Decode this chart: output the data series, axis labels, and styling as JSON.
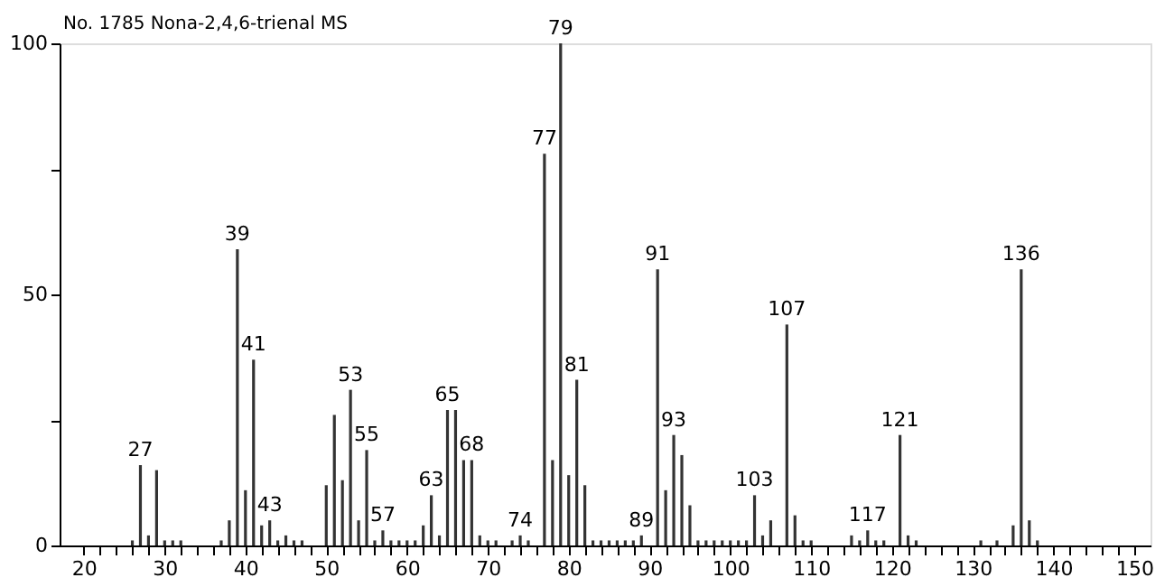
{
  "chart_data": {
    "type": "bar",
    "title": "No. 1785 Nona-2,4,6-trienal MS",
    "x": [
      26,
      27,
      28,
      29,
      30,
      31,
      32,
      37,
      38,
      39,
      40,
      41,
      42,
      43,
      44,
      45,
      46,
      47,
      50,
      51,
      52,
      53,
      54,
      55,
      56,
      57,
      58,
      59,
      60,
      61,
      62,
      63,
      64,
      65,
      66,
      67,
      68,
      69,
      70,
      71,
      73,
      74,
      75,
      77,
      78,
      79,
      80,
      81,
      82,
      83,
      84,
      85,
      86,
      87,
      88,
      89,
      91,
      92,
      93,
      94,
      95,
      96,
      97,
      98,
      99,
      100,
      101,
      102,
      103,
      104,
      105,
      107,
      108,
      109,
      110,
      115,
      116,
      117,
      118,
      119,
      121,
      122,
      123,
      131,
      133,
      135,
      136,
      137,
      138
    ],
    "values": [
      1,
      16,
      2,
      15,
      1,
      1,
      1,
      1,
      5,
      59,
      11,
      37,
      4,
      5,
      1,
      2,
      1,
      1,
      12,
      26,
      13,
      31,
      5,
      19,
      1,
      3,
      1,
      1,
      1,
      1,
      4,
      10,
      2,
      27,
      27,
      17,
      17,
      2,
      1,
      1,
      1,
      2,
      1,
      78,
      17,
      100,
      14,
      33,
      12,
      1,
      1,
      1,
      1,
      1,
      1,
      2,
      55,
      11,
      22,
      18,
      8,
      1,
      1,
      1,
      1,
      1,
      1,
      1,
      10,
      2,
      5,
      44,
      6,
      1,
      1,
      2,
      1,
      3,
      1,
      1,
      22,
      2,
      1,
      1,
      1,
      4,
      55,
      5,
      1
    ],
    "annotations": [
      {
        "text": "27",
        "x": 27,
        "y": 16
      },
      {
        "text": "39",
        "x": 39,
        "y": 59
      },
      {
        "text": "41",
        "x": 41,
        "y": 37
      },
      {
        "text": "43",
        "x": 43,
        "y": 5
      },
      {
        "text": "53",
        "x": 53,
        "y": 31
      },
      {
        "text": "55",
        "x": 55,
        "y": 19
      },
      {
        "text": "57",
        "x": 57,
        "y": 3
      },
      {
        "text": "63",
        "x": 63,
        "y": 10
      },
      {
        "text": "65",
        "x": 65,
        "y": 27
      },
      {
        "text": "68",
        "x": 68,
        "y": 17
      },
      {
        "text": "74",
        "x": 74,
        "y": 2
      },
      {
        "text": "77",
        "x": 77,
        "y": 78
      },
      {
        "text": "79",
        "x": 79,
        "y": 100
      },
      {
        "text": "81",
        "x": 81,
        "y": 33
      },
      {
        "text": "89",
        "x": 89,
        "y": 2
      },
      {
        "text": "91",
        "x": 91,
        "y": 55
      },
      {
        "text": "93",
        "x": 93,
        "y": 22
      },
      {
        "text": "103",
        "x": 103,
        "y": 10
      },
      {
        "text": "107",
        "x": 107,
        "y": 44
      },
      {
        "text": "117",
        "x": 117,
        "y": 3
      },
      {
        "text": "121",
        "x": 121,
        "y": 22
      },
      {
        "text": "136",
        "x": 136,
        "y": 55
      }
    ],
    "color": "#333333",
    "xlim": [
      17,
      152
    ],
    "xticks": [
      20,
      {
        "value": 22,
        "label": null
      },
      {
        "value": 24,
        "label": null
      },
      {
        "value": 26,
        "label": null
      },
      {
        "value": 28,
        "label": null
      },
      30,
      {
        "value": 32,
        "label": null
      },
      {
        "value": 34,
        "label": null
      },
      {
        "value": 36,
        "label": null
      },
      {
        "value": 38,
        "label": null
      },
      40,
      {
        "value": 42,
        "label": null
      },
      {
        "value": 44,
        "label": null
      },
      {
        "value": 46,
        "label": null
      },
      {
        "value": 48,
        "label": null
      },
      50,
      {
        "value": 52,
        "label": null
      },
      {
        "value": 54,
        "label": null
      },
      {
        "value": 56,
        "label": null
      },
      {
        "value": 58,
        "label": null
      },
      60,
      {
        "value": 62,
        "label": null
      },
      {
        "value": 64,
        "label": null
      },
      {
        "value": 66,
        "label": null
      },
      {
        "value": 68,
        "label": null
      },
      70,
      {
        "value": 72,
        "label": null
      },
      {
        "value": 74,
        "label": null
      },
      {
        "value": 76,
        "label": null
      },
      {
        "value": 78,
        "label": null
      },
      80,
      {
        "value": 82,
        "label": null
      },
      {
        "value": 84,
        "label": null
      },
      {
        "value": 86,
        "label": null
      },
      {
        "value": 88,
        "label": null
      },
      90,
      {
        "value": 92,
        "label": null
      },
      {
        "value": 94,
        "label": null
      },
      {
        "value": 96,
        "label": null
      },
      {
        "value": 98,
        "label": null
      },
      100,
      {
        "value": 102,
        "label": null
      },
      {
        "value": 104,
        "label": null
      },
      {
        "value": 106,
        "label": null
      },
      {
        "value": 108,
        "label": null
      },
      110,
      {
        "value": 112,
        "label": null
      },
      {
        "value": 114,
        "label": null
      },
      {
        "value": 116,
        "label": null
      },
      {
        "value": 118,
        "label": null
      },
      120,
      {
        "value": 122,
        "label": null
      },
      {
        "value": 124,
        "label": null
      },
      {
        "value": 126,
        "label": null
      },
      {
        "value": 128,
        "label": null
      },
      130,
      {
        "value": 132,
        "label": null
      },
      {
        "value": 134,
        "label": null
      },
      {
        "value": 136,
        "label": null
      },
      {
        "value": 138,
        "label": null
      },
      140,
      {
        "value": 142,
        "label": null
      },
      {
        "value": 144,
        "label": null
      },
      {
        "value": 146,
        "label": null
      },
      {
        "value": 148,
        "label": null
      },
      150
    ],
    "ylim": [
      0,
      100
    ],
    "yticks": [
      0,
      {
        "value": 25,
        "label": null
      },
      50,
      {
        "value": 75,
        "label": null
      },
      100
    ],
    "grid": false
  }
}
